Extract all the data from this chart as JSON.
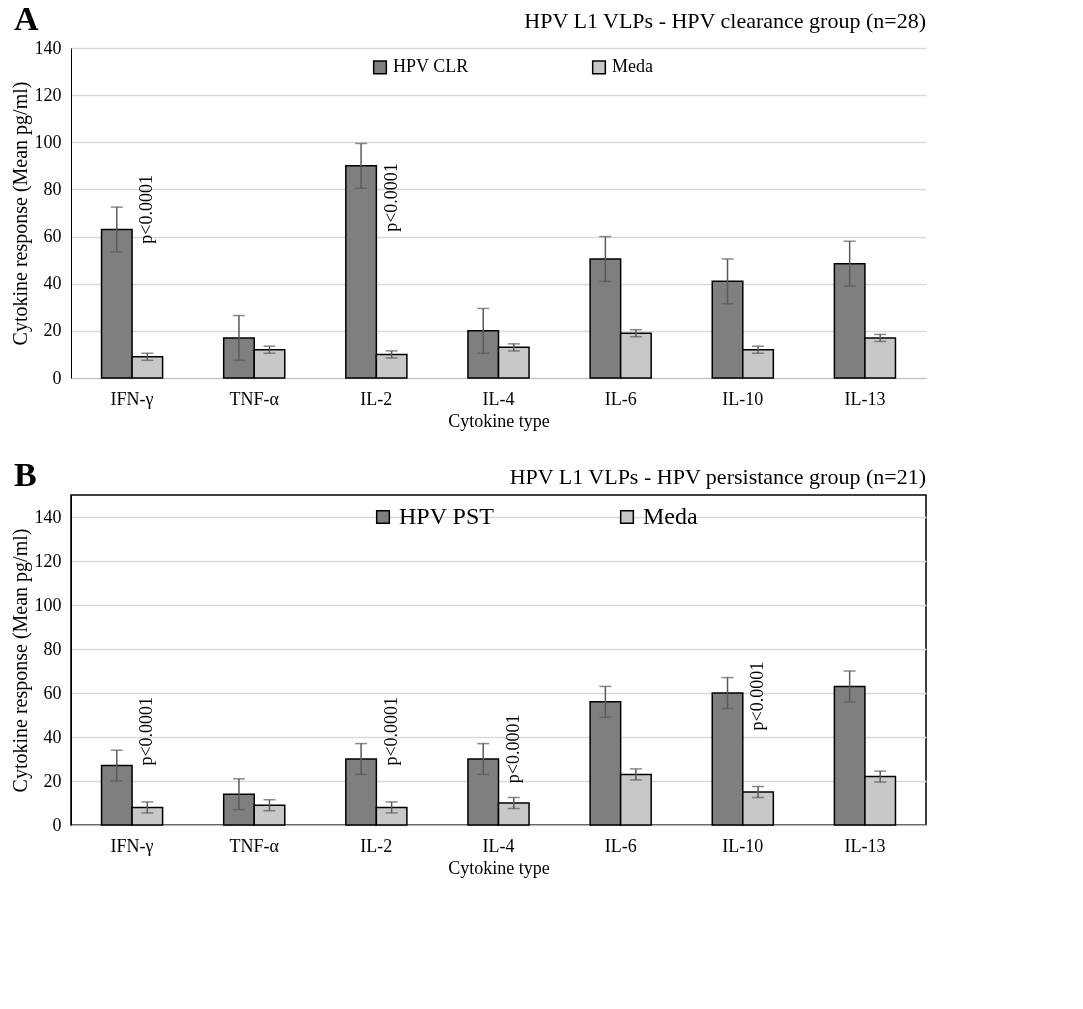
{
  "chart_data": [
    {
      "type": "bar",
      "title": "HPV L1 VLPs - HPV clearance group (n=28)",
      "xlabel": "Cytokine type",
      "ylabel": "Cytokine response (Mean pg/ml)",
      "categories": [
        "IFN-γ",
        "TNF-α",
        "IL-2",
        "IL-4",
        "IL-6",
        "IL-10",
        "IL-13"
      ],
      "series": [
        {
          "name": "HPV CLR",
          "color": "#7f7f7f",
          "values": [
            63,
            17,
            90,
            20,
            50.5,
            41,
            48.5
          ],
          "errors": [
            9.5,
            9.5,
            9.5,
            9.5,
            9.5,
            9.5,
            9.5
          ]
        },
        {
          "name": "Meda",
          "color": "#c8c8c8",
          "values": [
            9,
            12,
            10,
            13,
            19,
            12,
            17
          ],
          "errors": [
            1.5,
            1.5,
            1.5,
            1.5,
            1.5,
            1.5,
            1.5
          ]
        }
      ],
      "ylim": [
        0,
        140
      ],
      "yticks": [
        0,
        20,
        40,
        60,
        80,
        100,
        120,
        140
      ],
      "grid": "y",
      "legend": "top",
      "annotations": [
        "A",
        {
          "text": "p<0.0001",
          "x": "IFN-γ",
          "y": 57
        },
        {
          "text": "p<0.0001",
          "x": "IL-2",
          "y": 62
        }
      ]
    },
    {
      "type": "bar",
      "title": "HPV L1 VLPs - HPV persistance group (n=21)",
      "xlabel": "Cytokine type",
      "ylabel": "Cytokine response (Mean pg/ml)",
      "categories": [
        "IFN-γ",
        "TNF-α",
        "IL-2",
        "IL-4",
        "IL-6",
        "IL-10",
        "IL-13"
      ],
      "series": [
        {
          "name": "HPV PST",
          "color": "#7f7f7f",
          "values": [
            27,
            14,
            30,
            30,
            56,
            60,
            63
          ],
          "errors": [
            7,
            7,
            7,
            7,
            7,
            7,
            7
          ]
        },
        {
          "name": "Meda",
          "color": "#c8c8c8",
          "values": [
            8,
            9,
            8,
            10,
            23,
            15,
            22
          ],
          "errors": [
            2.5,
            2.5,
            2.5,
            2.5,
            2.5,
            2.5,
            2.5
          ]
        }
      ],
      "ylim": [
        0,
        150
      ],
      "yticks": [
        0,
        20,
        40,
        60,
        80,
        100,
        120,
        140
      ],
      "grid": "y",
      "legend": "top",
      "annotations": [
        "B",
        {
          "text": "p<0.0001",
          "x": "IFN-γ",
          "y": 27
        },
        {
          "text": "p<0.0001",
          "x": "IL-2",
          "y": 27
        },
        {
          "text": "p<0.0001",
          "x": "IL-4",
          "y": 19
        },
        {
          "text": "p<0.0001",
          "x": "IL-10",
          "y": 43
        }
      ]
    }
  ]
}
